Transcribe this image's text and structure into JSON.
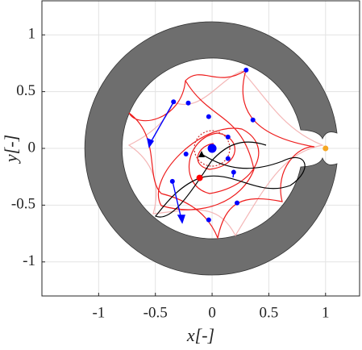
{
  "chart_data": {
    "type": "scatter",
    "xlabel": "x[-]",
    "ylabel": "y[-]",
    "xlim": [
      -1.5,
      1.3
    ],
    "ylim": [
      -1.3,
      1.3
    ],
    "xticks": [
      -1,
      -0.5,
      0,
      0.5,
      1
    ],
    "yticks": [
      -1,
      -0.5,
      0,
      0.5,
      1
    ],
    "grid": true,
    "series": [
      {
        "color": "#0000ff",
        "size": 3,
        "x": [
          0.3,
          -0.21,
          -0.34,
          -0.03,
          0.36,
          0.14,
          -0.23,
          0.14,
          0.19,
          -0.35,
          0.22,
          -0.03
        ],
        "values": [
          0.69,
          0.4,
          0.41,
          0.28,
          0.25,
          0.1,
          -0.05,
          -0.09,
          -0.21,
          -0.29,
          -0.48,
          -0.63
        ]
      },
      {
        "color": "#0000ff",
        "size": 5.5,
        "x": [
          0
        ],
        "values": [
          0
        ]
      },
      {
        "color": "#ff0000",
        "size": 4,
        "x": [
          -0.11
        ],
        "values": [
          -0.26
        ]
      },
      {
        "color": "#f5a623",
        "size": 3.5,
        "x": [
          1
        ],
        "values": [
          0
        ]
      }
    ]
  }
}
